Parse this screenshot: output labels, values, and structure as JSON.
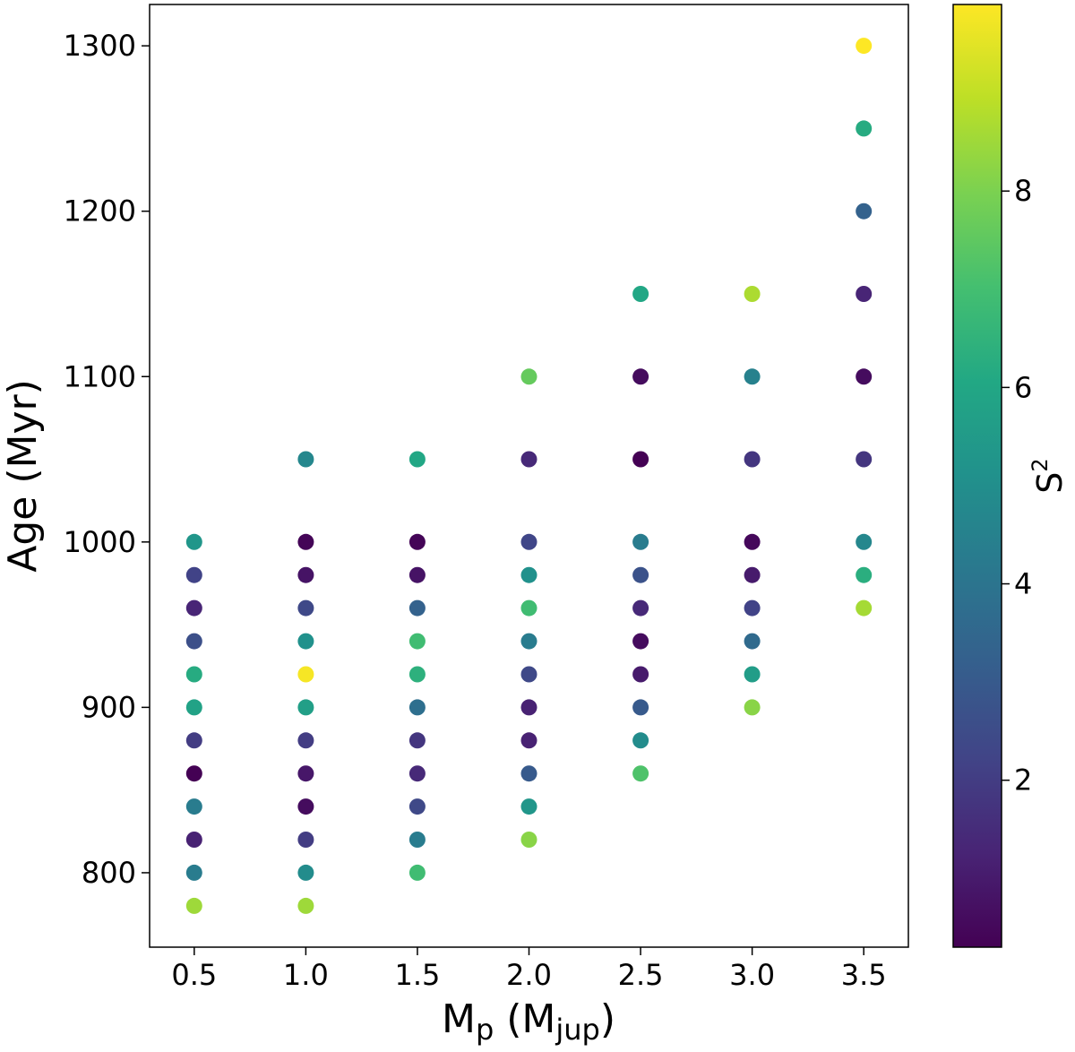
{
  "chart_data": {
    "type": "scatter",
    "title": "",
    "xlabel": {
      "main": "M",
      "sub": "p",
      "unit_open": " (M",
      "unit_sub": "jup",
      "unit_close": ")"
    },
    "ylabel": "Age (Myr)",
    "colorbar_label": {
      "main": "S",
      "sup": "2"
    },
    "xlim": [
      0.3,
      3.7
    ],
    "ylim": [
      755,
      1325
    ],
    "x_ticks": [
      "0.5",
      "1.0",
      "1.5",
      "2.0",
      "2.5",
      "3.0",
      "3.5"
    ],
    "y_ticks": [
      "800",
      "900",
      "1000",
      "1100",
      "1200",
      "1300"
    ],
    "colorbar": {
      "colormap": "viridis",
      "range": [
        0.3,
        9.9
      ],
      "ticks": [
        "2",
        "4",
        "6",
        "8"
      ]
    },
    "grid": false,
    "points": [
      {
        "x": 0.5,
        "y": 1000,
        "s2": 5.3
      },
      {
        "x": 0.5,
        "y": 980,
        "s2": 2.2
      },
      {
        "x": 0.5,
        "y": 960,
        "s2": 1.3
      },
      {
        "x": 0.5,
        "y": 940,
        "s2": 2.6
      },
      {
        "x": 0.5,
        "y": 920,
        "s2": 6.2
      },
      {
        "x": 0.5,
        "y": 900,
        "s2": 5.8
      },
      {
        "x": 0.5,
        "y": 880,
        "s2": 2.0
      },
      {
        "x": 0.5,
        "y": 860,
        "s2": 0.3
      },
      {
        "x": 0.5,
        "y": 840,
        "s2": 4.3
      },
      {
        "x": 0.5,
        "y": 820,
        "s2": 1.2
      },
      {
        "x": 0.5,
        "y": 800,
        "s2": 4.3
      },
      {
        "x": 0.5,
        "y": 780,
        "s2": 8.5
      },
      {
        "x": 1.0,
        "y": 1050,
        "s2": 4.7
      },
      {
        "x": 1.0,
        "y": 1000,
        "s2": 0.4
      },
      {
        "x": 1.0,
        "y": 980,
        "s2": 0.8
      },
      {
        "x": 1.0,
        "y": 960,
        "s2": 2.4
      },
      {
        "x": 1.0,
        "y": 940,
        "s2": 5.1
      },
      {
        "x": 1.0,
        "y": 920,
        "s2": 9.8
      },
      {
        "x": 1.0,
        "y": 900,
        "s2": 5.7
      },
      {
        "x": 1.0,
        "y": 880,
        "s2": 2.0
      },
      {
        "x": 1.0,
        "y": 860,
        "s2": 0.9
      },
      {
        "x": 1.0,
        "y": 840,
        "s2": 0.6
      },
      {
        "x": 1.0,
        "y": 820,
        "s2": 2.0
      },
      {
        "x": 1.0,
        "y": 800,
        "s2": 4.9
      },
      {
        "x": 1.0,
        "y": 780,
        "s2": 8.5
      },
      {
        "x": 1.5,
        "y": 1050,
        "s2": 6.0
      },
      {
        "x": 1.5,
        "y": 1000,
        "s2": 0.4
      },
      {
        "x": 1.5,
        "y": 980,
        "s2": 0.8
      },
      {
        "x": 1.5,
        "y": 960,
        "s2": 3.3
      },
      {
        "x": 1.5,
        "y": 940,
        "s2": 6.9
      },
      {
        "x": 1.5,
        "y": 920,
        "s2": 6.4
      },
      {
        "x": 1.5,
        "y": 900,
        "s2": 3.8
      },
      {
        "x": 1.5,
        "y": 880,
        "s2": 1.8
      },
      {
        "x": 1.5,
        "y": 860,
        "s2": 1.4
      },
      {
        "x": 1.5,
        "y": 840,
        "s2": 2.4
      },
      {
        "x": 1.5,
        "y": 820,
        "s2": 4.3
      },
      {
        "x": 1.5,
        "y": 800,
        "s2": 6.9
      },
      {
        "x": 2.0,
        "y": 1100,
        "s2": 7.6
      },
      {
        "x": 2.0,
        "y": 1050,
        "s2": 1.4
      },
      {
        "x": 2.0,
        "y": 1000,
        "s2": 2.3
      },
      {
        "x": 2.0,
        "y": 980,
        "s2": 5.1
      },
      {
        "x": 2.0,
        "y": 960,
        "s2": 6.9
      },
      {
        "x": 2.0,
        "y": 940,
        "s2": 4.3
      },
      {
        "x": 2.0,
        "y": 920,
        "s2": 2.4
      },
      {
        "x": 2.0,
        "y": 900,
        "s2": 1.2
      },
      {
        "x": 2.0,
        "y": 880,
        "s2": 1.2
      },
      {
        "x": 2.0,
        "y": 860,
        "s2": 3.0
      },
      {
        "x": 2.0,
        "y": 840,
        "s2": 5.3
      },
      {
        "x": 2.0,
        "y": 820,
        "s2": 8.2
      },
      {
        "x": 2.5,
        "y": 1150,
        "s2": 6.0
      },
      {
        "x": 2.5,
        "y": 1100,
        "s2": 0.6
      },
      {
        "x": 2.5,
        "y": 1050,
        "s2": 0.2
      },
      {
        "x": 2.5,
        "y": 1000,
        "s2": 4.3
      },
      {
        "x": 2.5,
        "y": 980,
        "s2": 2.7
      },
      {
        "x": 2.5,
        "y": 960,
        "s2": 1.4
      },
      {
        "x": 2.5,
        "y": 940,
        "s2": 0.6
      },
      {
        "x": 2.5,
        "y": 920,
        "s2": 1.0
      },
      {
        "x": 2.5,
        "y": 900,
        "s2": 3.0
      },
      {
        "x": 2.5,
        "y": 880,
        "s2": 4.9
      },
      {
        "x": 2.5,
        "y": 860,
        "s2": 7.2
      },
      {
        "x": 3.0,
        "y": 1150,
        "s2": 8.7
      },
      {
        "x": 3.0,
        "y": 1100,
        "s2": 4.5
      },
      {
        "x": 3.0,
        "y": 1050,
        "s2": 1.8
      },
      {
        "x": 3.0,
        "y": 1000,
        "s2": 0.5
      },
      {
        "x": 3.0,
        "y": 980,
        "s2": 1.0
      },
      {
        "x": 3.0,
        "y": 960,
        "s2": 2.2
      },
      {
        "x": 3.0,
        "y": 940,
        "s2": 3.6
      },
      {
        "x": 3.0,
        "y": 920,
        "s2": 5.6
      },
      {
        "x": 3.0,
        "y": 900,
        "s2": 8.2
      },
      {
        "x": 3.5,
        "y": 1300,
        "s2": 9.9
      },
      {
        "x": 3.5,
        "y": 1250,
        "s2": 6.2
      },
      {
        "x": 3.5,
        "y": 1200,
        "s2": 3.3
      },
      {
        "x": 3.5,
        "y": 1150,
        "s2": 1.3
      },
      {
        "x": 3.5,
        "y": 1100,
        "s2": 0.6
      },
      {
        "x": 3.5,
        "y": 1050,
        "s2": 1.8
      },
      {
        "x": 3.5,
        "y": 1000,
        "s2": 4.7
      },
      {
        "x": 3.5,
        "y": 980,
        "s2": 6.3
      },
      {
        "x": 3.5,
        "y": 960,
        "s2": 8.6
      }
    ]
  }
}
